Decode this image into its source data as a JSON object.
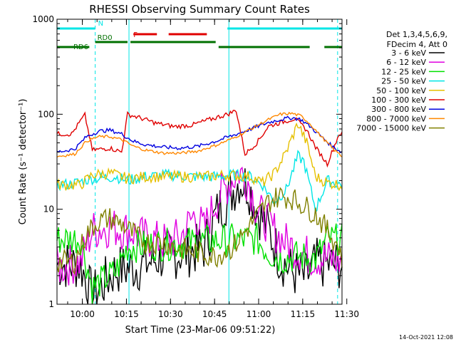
{
  "chart_data": {
    "type": "line",
    "title": "RHESSI Observing Summary Count Rates",
    "xlabel": "Start Time (23-Mar-06 09:51:22)",
    "ylabel": "Count Rate (s⁻¹ detector⁻¹)",
    "y_scale": "log",
    "ylim": [
      1,
      1000
    ],
    "y_ticks": [
      1,
      10,
      100,
      1000
    ],
    "y_tick_labels": [
      "1",
      "10",
      "100",
      "1000"
    ],
    "x_range_minutes_from_start": [
      0,
      97
    ],
    "x_ticks": [
      {
        "label": "10:00",
        "min": 8.63
      },
      {
        "label": "10:15",
        "min": 23.63
      },
      {
        "label": "10:30",
        "min": 38.63
      },
      {
        "label": "10:45",
        "min": 53.63
      },
      {
        "label": "11:00",
        "min": 68.63
      },
      {
        "label": "11:15",
        "min": 83.63
      },
      {
        "label": "11:30",
        "min": 98.63
      }
    ],
    "legend_header": [
      "Det 1,3,4,5,6,9,",
      "FDecim 4, Att 0"
    ],
    "series": [
      {
        "name": "3 - 6 keV",
        "color": "#000000",
        "points": [
          [
            0,
            2.6
          ],
          [
            8,
            2.6
          ],
          [
            12,
            1.2
          ],
          [
            20,
            2.3
          ],
          [
            28,
            2.5
          ],
          [
            36,
            3.2
          ],
          [
            44,
            3.5
          ],
          [
            50,
            4.0
          ],
          [
            55,
            10
          ],
          [
            58,
            13
          ],
          [
            62,
            20
          ],
          [
            65,
            18
          ],
          [
            68,
            10
          ],
          [
            72,
            6
          ],
          [
            76,
            3
          ],
          [
            80,
            2.2
          ],
          [
            84,
            1.9
          ],
          [
            86,
            2.1
          ],
          [
            88,
            2.7
          ],
          [
            92,
            2.6
          ],
          [
            97,
            2.6
          ]
        ]
      },
      {
        "name": "6 - 12 keV",
        "color": "#e000e0",
        "points": [
          [
            0,
            2.4
          ],
          [
            8,
            2.8
          ],
          [
            12,
            6
          ],
          [
            18,
            6.5
          ],
          [
            24,
            6
          ],
          [
            30,
            5
          ],
          [
            36,
            4.5
          ],
          [
            42,
            5
          ],
          [
            47,
            9
          ],
          [
            50,
            6
          ],
          [
            54,
            12
          ],
          [
            58,
            18
          ],
          [
            62,
            25
          ],
          [
            65,
            20
          ],
          [
            68,
            10
          ],
          [
            72,
            7
          ],
          [
            76,
            5
          ],
          [
            80,
            4
          ],
          [
            86,
            3.2
          ],
          [
            92,
            3
          ],
          [
            97,
            2.8
          ]
        ]
      },
      {
        "name": "12 - 25 keV",
        "color": "#00e000",
        "points": [
          [
            0,
            4.8
          ],
          [
            8,
            4.9
          ],
          [
            12,
            1.5
          ],
          [
            20,
            2.2
          ],
          [
            24,
            4.0
          ],
          [
            32,
            4.2
          ],
          [
            40,
            4.3
          ],
          [
            50,
            4.6
          ],
          [
            60,
            4.8
          ],
          [
            68,
            4.8
          ],
          [
            72,
            3.5
          ],
          [
            76,
            3.0
          ],
          [
            82,
            3.2
          ],
          [
            88,
            3.0
          ],
          [
            92,
            4.8
          ],
          [
            97,
            4.8
          ]
        ]
      },
      {
        "name": "25 - 50 keV",
        "color": "#00e6e6",
        "points": [
          [
            0,
            18
          ],
          [
            5,
            18.5
          ],
          [
            12,
            21
          ],
          [
            20,
            22
          ],
          [
            24,
            20
          ],
          [
            30,
            22
          ],
          [
            38,
            23
          ],
          [
            46,
            22
          ],
          [
            54,
            22
          ],
          [
            60,
            23
          ],
          [
            66,
            22
          ],
          [
            70,
            18
          ],
          [
            74,
            12
          ],
          [
            78,
            16
          ],
          [
            82,
            36
          ],
          [
            84,
            32
          ],
          [
            88,
            10
          ],
          [
            92,
            20
          ],
          [
            97,
            18
          ]
        ]
      },
      {
        "name": "50 - 100 keV",
        "color": "#e6c000",
        "points": [
          [
            0,
            18
          ],
          [
            8,
            18
          ],
          [
            12,
            23
          ],
          [
            18,
            24
          ],
          [
            24,
            21
          ],
          [
            30,
            22
          ],
          [
            40,
            22
          ],
          [
            50,
            22
          ],
          [
            58,
            23
          ],
          [
            66,
            22
          ],
          [
            70,
            19
          ],
          [
            74,
            24
          ],
          [
            78,
            40
          ],
          [
            82,
            80
          ],
          [
            85,
            50
          ],
          [
            88,
            22
          ],
          [
            92,
            19
          ],
          [
            97,
            18
          ]
        ]
      },
      {
        "name": "100 - 300 keV",
        "color": "#e00000",
        "points": [
          [
            0,
            62
          ],
          [
            5,
            62
          ],
          [
            8,
            85
          ],
          [
            9.5,
            98
          ],
          [
            12,
            42
          ],
          [
            18,
            44
          ],
          [
            22,
            40
          ],
          [
            24,
            100
          ],
          [
            28,
            92
          ],
          [
            34,
            80
          ],
          [
            40,
            74
          ],
          [
            46,
            77
          ],
          [
            52,
            88
          ],
          [
            58,
            100
          ],
          [
            61,
            110
          ],
          [
            64,
            38
          ],
          [
            68,
            50
          ],
          [
            72,
            75
          ],
          [
            78,
            85
          ],
          [
            81,
            90
          ],
          [
            85,
            68
          ],
          [
            88,
            45
          ],
          [
            92,
            30
          ],
          [
            96,
            62
          ],
          [
            97,
            62
          ]
        ]
      },
      {
        "name": "300 - 800 keV",
        "color": "#0000e0",
        "points": [
          [
            0,
            40
          ],
          [
            6,
            43
          ],
          [
            10,
            58
          ],
          [
            14,
            66
          ],
          [
            18,
            68
          ],
          [
            22,
            62
          ],
          [
            26,
            52
          ],
          [
            30,
            48
          ],
          [
            36,
            45
          ],
          [
            42,
            44
          ],
          [
            48,
            46
          ],
          [
            54,
            52
          ],
          [
            60,
            60
          ],
          [
            66,
            70
          ],
          [
            72,
            82
          ],
          [
            76,
            88
          ],
          [
            80,
            92
          ],
          [
            83,
            88
          ],
          [
            86,
            75
          ],
          [
            90,
            58
          ],
          [
            94,
            45
          ],
          [
            97,
            40
          ]
        ]
      },
      {
        "name": "800 - 7000 keV",
        "color": "#ff8800",
        "points": [
          [
            0,
            36
          ],
          [
            6,
            38
          ],
          [
            10,
            52
          ],
          [
            14,
            58
          ],
          [
            18,
            58
          ],
          [
            22,
            54
          ],
          [
            26,
            46
          ],
          [
            30,
            42
          ],
          [
            36,
            39
          ],
          [
            42,
            39
          ],
          [
            48,
            41
          ],
          [
            54,
            47
          ],
          [
            60,
            56
          ],
          [
            66,
            70
          ],
          [
            72,
            88
          ],
          [
            76,
            100
          ],
          [
            80,
            102
          ],
          [
            83,
            96
          ],
          [
            86,
            80
          ],
          [
            90,
            58
          ],
          [
            94,
            43
          ],
          [
            97,
            36
          ]
        ]
      },
      {
        "name": "7000 - 15000 keV",
        "color": "#808000",
        "points": [
          [
            0,
            2.8
          ],
          [
            6,
            2.8
          ],
          [
            10,
            5.5
          ],
          [
            14,
            7.5
          ],
          [
            18,
            8
          ],
          [
            22,
            7
          ],
          [
            26,
            5.5
          ],
          [
            30,
            4.5
          ],
          [
            36,
            4.5
          ],
          [
            42,
            3.8
          ],
          [
            48,
            3.5
          ],
          [
            54,
            3.2
          ],
          [
            60,
            4
          ],
          [
            66,
            7
          ],
          [
            72,
            12
          ],
          [
            76,
            14
          ],
          [
            80,
            13
          ],
          [
            84,
            11
          ],
          [
            88,
            9
          ],
          [
            92,
            6
          ],
          [
            96,
            4
          ],
          [
            97,
            3
          ]
        ]
      }
    ],
    "status_bars": [
      {
        "label": "N",
        "color": "#00e6e6",
        "segments": [
          [
            0,
            13
          ],
          [
            58,
            97
          ]
        ]
      },
      {
        "label": "F",
        "color": "#e00000",
        "segments": [
          [
            26,
            34
          ],
          [
            38,
            51
          ]
        ]
      },
      {
        "label": "RD0",
        "color": "#007000",
        "segments": [
          [
            13,
            24
          ],
          [
            25,
            54
          ]
        ]
      },
      {
        "label": "RD6",
        "color": "#007000",
        "segments": [
          [
            0,
            11
          ],
          [
            55,
            86
          ],
          [
            91,
            97
          ]
        ]
      }
    ],
    "status_labels": {
      "N": {
        "text": "N",
        "at_min": 13
      },
      "F": {
        "text": "F",
        "at_min": 26
      },
      "RD0": {
        "text": "RD0",
        "at_min": 13
      },
      "RD6": {
        "text": "RD6",
        "at_min": 8
      }
    },
    "vertical_markers": [
      {
        "min": 0,
        "color": "#00e6e6",
        "style": "solid"
      },
      {
        "min": 13,
        "color": "#00e6e6",
        "style": "dashed"
      },
      {
        "min": 24.5,
        "color": "#00e6e6",
        "style": "solid"
      },
      {
        "min": 58.5,
        "color": "#00e6e6",
        "style": "solid"
      },
      {
        "min": 95.5,
        "color": "#00e6e6",
        "style": "dashed"
      }
    ],
    "grid": false,
    "legend_position": "right"
  },
  "footer": {
    "timestamp": "14-Oct-2021 12:08"
  }
}
